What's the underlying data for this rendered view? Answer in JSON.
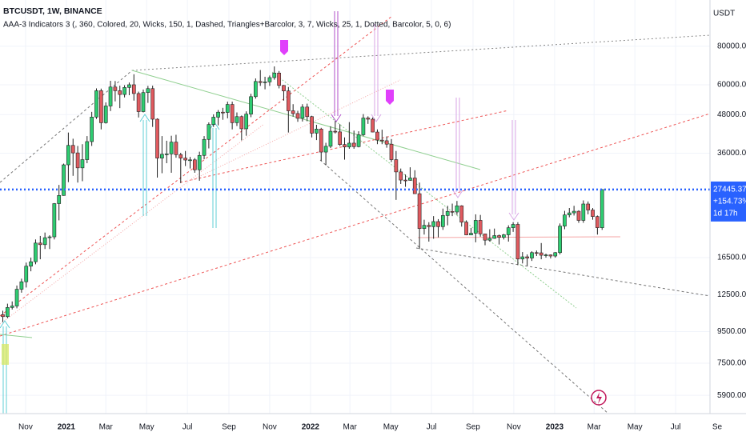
{
  "header": {
    "symbol": "BTCUSDT, 1W, BINANCE",
    "indicator": "AAA-3 Indicators 3 (, 360, Colored, 20, Wicks,  150, 1, Dashed, Triangles+Barcolor, 3, 7, Wicks,  25, 1, Dotted, Barcolor, 5, 0, 6)"
  },
  "chart_data": {
    "type": "candlestick",
    "currency": "USDT",
    "open": [
      10780,
      10620,
      11370,
      11500,
      13030,
      13780,
      15480,
      16000,
      18400,
      18180,
      19150,
      19270,
      24700,
      26250,
      33000,
      38150,
      36070,
      32260,
      34300,
      39250,
      47150,
      57400,
      45200,
      51200,
      59000,
      57400,
      55800,
      58800,
      60000,
      56200,
      49100,
      56600,
      58300,
      46400,
      34700,
      35700,
      35800,
      39100,
      35600,
      34700,
      34200,
      34250,
      31800,
      35400,
      39900,
      44600,
      47100,
      48900,
      48800,
      51800,
      45200,
      47300,
      43200,
      48200,
      54900,
      61500,
      61000,
      61300,
      63300,
      65500,
      59700,
      57300,
      49400,
      48400,
      46700,
      50800,
      47300,
      41800,
      43100,
      36300,
      37900,
      42400,
      42200,
      38400,
      37700,
      38800,
      37800,
      41300,
      46800,
      46400,
      42150,
      39700,
      39500,
      38500,
      34300,
      31300,
      29450,
      29400,
      29900,
      26600,
      20500,
      21000,
      20800,
      21600,
      20800,
      22600,
      23300,
      23200,
      24300,
      21500,
      19550,
      19800,
      21800,
      19700,
      18800,
      19050,
      19450,
      19200,
      19570,
      20630,
      21150,
      16330,
      16600,
      16450,
      17130,
      17100,
      16800,
      16840,
      16700,
      17130,
      20880,
      22700,
      23050,
      23330,
      21790,
      24630,
      23550,
      22430,
      20630
    ],
    "high": [
      11100,
      11700,
      11900,
      13400,
      14100,
      15900,
      16500,
      18900,
      19400,
      19900,
      19500,
      24800,
      28400,
      33300,
      42000,
      40100,
      38000,
      38500,
      40900,
      49000,
      58400,
      58300,
      52600,
      61800,
      61700,
      59600,
      59800,
      61000,
      64900,
      57000,
      57900,
      59500,
      59600,
      46700,
      40900,
      39500,
      41000,
      41300,
      36100,
      36600,
      35000,
      34700,
      36400,
      40900,
      45300,
      48100,
      49700,
      50500,
      52900,
      52900,
      48800,
      47700,
      49200,
      56100,
      62900,
      67000,
      63700,
      64300,
      68800,
      66500,
      59900,
      59000,
      51900,
      49400,
      51900,
      52100,
      47600,
      44500,
      43500,
      38900,
      44000,
      45800,
      44700,
      40500,
      45400,
      42600,
      42400,
      48200,
      47400,
      47000,
      43000,
      42900,
      40800,
      40000,
      36600,
      32100,
      30700,
      32400,
      31700,
      28900,
      21900,
      21500,
      22500,
      22000,
      23800,
      24300,
      24700,
      25200,
      24400,
      21800,
      20600,
      22800,
      22700,
      19700,
      20400,
      20500,
      19600,
      19700,
      21000,
      21500,
      21500,
      17200,
      16900,
      17300,
      17400,
      18400,
      17000,
      16900,
      17200,
      21300,
      23400,
      23900,
      24300,
      23500,
      25300,
      25100,
      23900,
      22600,
      27500
    ],
    "low": [
      10200,
      10500,
      11200,
      11300,
      12700,
      13200,
      14900,
      15700,
      16300,
      17600,
      17600,
      18900,
      21800,
      26200,
      29000,
      30400,
      28900,
      29200,
      33400,
      38000,
      46500,
      43000,
      44900,
      49300,
      53000,
      50400,
      54600,
      55500,
      53300,
      47000,
      48800,
      52400,
      43800,
      30000,
      31000,
      33400,
      31100,
      34800,
      28800,
      32700,
      32100,
      31100,
      29300,
      34400,
      37300,
      43800,
      44300,
      46200,
      46700,
      43000,
      44100,
      39600,
      41000,
      47100,
      54100,
      59500,
      58000,
      59500,
      62300,
      58400,
      53300,
      42000,
      47300,
      45500,
      45600,
      45700,
      40500,
      39700,
      34000,
      32900,
      37400,
      41700,
      38000,
      34300,
      37200,
      37200,
      37600,
      40900,
      44800,
      42100,
      38500,
      38500,
      37500,
      33700,
      25400,
      28600,
      28000,
      29300,
      26600,
      17600,
      19600,
      18600,
      19000,
      19200,
      20300,
      21000,
      22500,
      22700,
      20800,
      19500,
      19500,
      18500,
      19300,
      18100,
      18600,
      19000,
      18200,
      18900,
      18600,
      20000,
      15600,
      15800,
      15500,
      16100,
      16700,
      16300,
      16500,
      16400,
      16500,
      16900,
      20400,
      22300,
      22600,
      21400,
      21400,
      22800,
      21900,
      19600,
      20300
    ],
    "close": [
      10620,
      11370,
      11500,
      13030,
      13780,
      15480,
      16000,
      18400,
      18180,
      19150,
      19270,
      24700,
      26250,
      33000,
      38150,
      36070,
      32260,
      34300,
      39250,
      47150,
      57400,
      45200,
      51200,
      59000,
      57400,
      55800,
      58800,
      60000,
      56200,
      49100,
      56600,
      58300,
      46400,
      34700,
      35700,
      35800,
      39100,
      35600,
      34700,
      34200,
      34250,
      31800,
      35400,
      39900,
      44600,
      47100,
      48900,
      48800,
      51800,
      45200,
      47300,
      43200,
      48200,
      54900,
      61500,
      61000,
      61300,
      63300,
      65500,
      59700,
      57300,
      49400,
      48400,
      46700,
      50800,
      47300,
      41800,
      43100,
      36300,
      37900,
      42400,
      42200,
      38400,
      37700,
      38800,
      37800,
      41300,
      46800,
      46400,
      42150,
      39700,
      39500,
      38500,
      34300,
      31300,
      29450,
      29400,
      29900,
      26600,
      20500,
      21000,
      20800,
      21600,
      20800,
      22600,
      23300,
      23200,
      24300,
      21500,
      19550,
      19800,
      21800,
      19700,
      18800,
      19050,
      19450,
      19200,
      19570,
      20630,
      21150,
      16330,
      16600,
      16450,
      17130,
      17100,
      16800,
      16840,
      16700,
      17130,
      20880,
      22700,
      23050,
      23330,
      21790,
      24630,
      23550,
      22430,
      20630,
      27445.37
    ],
    "up_color": "#2ecc71",
    "down_color": "#e05a5f",
    "log_scale": true,
    "grid": true,
    "ylim": [
      5210,
      113000
    ],
    "yticks": [
      {
        "value": 80000,
        "label": "80000.00"
      },
      {
        "value": 60000,
        "label": "60000.00"
      },
      {
        "value": 48000,
        "label": "48000.00"
      },
      {
        "value": 36000,
        "label": "36000.00"
      },
      {
        "value": 16500,
        "label": "16500.00"
      },
      {
        "value": 12500,
        "label": "12500.00"
      },
      {
        "value": 9500,
        "label": "9500.00"
      },
      {
        "value": 7500,
        "label": "7500.00"
      },
      {
        "value": 5900,
        "label": "5900.00"
      }
    ],
    "xlim": [
      -0.6,
      150.7
    ],
    "xticks": [
      {
        "value": 4.86,
        "label": "Nov"
      },
      {
        "value": 13.57,
        "label": "2021"
      },
      {
        "value": 22,
        "label": "Mar"
      },
      {
        "value": 30.71,
        "label": "May"
      },
      {
        "value": 39.43,
        "label": "Jul"
      },
      {
        "value": 48.29,
        "label": "Sep"
      },
      {
        "value": 57,
        "label": "Nov"
      },
      {
        "value": 65.71,
        "label": "2022"
      },
      {
        "value": 74.14,
        "label": "Mar"
      },
      {
        "value": 82.86,
        "label": "May"
      },
      {
        "value": 91.57,
        "label": "Jul"
      },
      {
        "value": 100.43,
        "label": "Sep"
      },
      {
        "value": 109.14,
        "label": "Nov"
      },
      {
        "value": 117.86,
        "label": "2023"
      },
      {
        "value": 126.29,
        "label": "Mar"
      },
      {
        "value": 135,
        "label": "May"
      },
      {
        "value": 143.71,
        "label": "Jul"
      },
      {
        "value": 152.57,
        "label": "Se"
      }
    ],
    "last_price_change": "+154.73%",
    "countdown": "1d 17h",
    "last_price_color": "#2962ff"
  }
}
